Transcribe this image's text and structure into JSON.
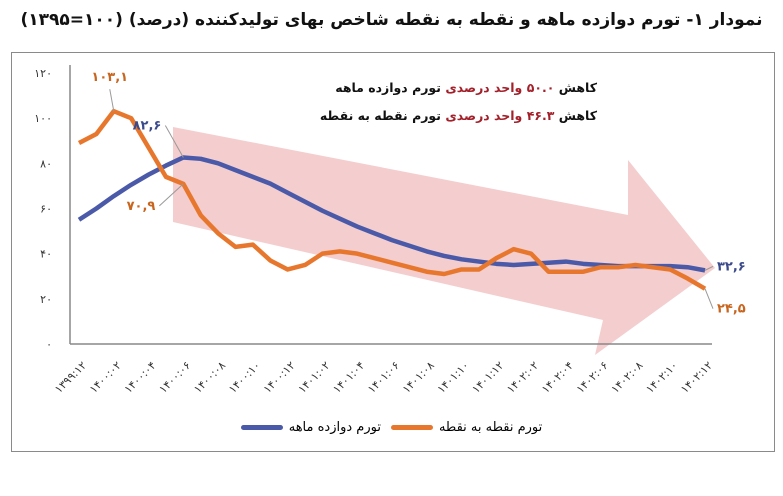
{
  "title": "نمودار ۱- تورم دوازده ماهه و نقطه به نقطه شاخص بهای تولیدکننده (درصد) (۱۰۰=۱۳۹۵)",
  "annotations": [
    {
      "prefix": "کاهش",
      "highlight": "۵۰.۰ واحد درصدی",
      "suffix": "تورم دوازده ماهه"
    },
    {
      "prefix": "کاهش",
      "highlight": "۴۶.۳ واحد درصدی",
      "suffix": "تورم نقطه به نقطه"
    }
  ],
  "colors": {
    "twelve_month": "#4a5aa8",
    "point_to_point": "#e8772e",
    "arrow": "#f2c4c6",
    "highlight": "#a3202a"
  },
  "chart_data": {
    "type": "line",
    "title": "نمودار ۱- تورم دوازده ماهه و نقطه به نقطه شاخص بهای تولیدکننده (درصد) (۱۰۰=۱۳۹۵)",
    "ylim": [
      0,
      120
    ],
    "yticks": [
      "۰",
      "۲۰",
      "۴۰",
      "۶۰",
      "۸۰",
      "۱۰۰",
      "۱۲۰"
    ],
    "ytick_values": [
      0,
      20,
      40,
      60,
      80,
      100,
      120
    ],
    "xtick_labels": [
      "۱۳۹۹:۱۲",
      "۱۴۰۰:۰۲",
      "۱۴۰۰:۰۴",
      "۱۴۰۰:۰۶",
      "۱۴۰۰:۰۸",
      "۱۴۰۰:۱۰",
      "۱۴۰۰:۱۲",
      "۱۴۰۱:۰۲",
      "۱۴۰۱:۰۴",
      "۱۴۰۱:۰۶",
      "۱۴۰۱:۰۸",
      "۱۴۰۱:۱۰",
      "۱۴۰۱:۱۲",
      "۱۴۰۲:۰۲",
      "۱۴۰۲:۰۴",
      "۱۴۰۲:۰۶",
      "۱۴۰۲:۰۸",
      "۱۴۰۲:۱۰",
      "۱۴۰۲:۱۲"
    ],
    "grid": false,
    "legend": "bottom",
    "series": [
      {
        "name": "تورم دوازده ماهه",
        "color": "#4a5aa8",
        "values": [
          55,
          60,
          65.5,
          70.5,
          75,
          79,
          82.6,
          82,
          80,
          77,
          74,
          71,
          67,
          63,
          59,
          55.5,
          52,
          49,
          46,
          43.5,
          41,
          39,
          37.5,
          36.5,
          35.5,
          35,
          35.5,
          36,
          36.5,
          35.5,
          35,
          34.5,
          34.5,
          34.5,
          34.5,
          34,
          32.6
        ],
        "labels": [
          {
            "index": 6,
            "text": "۸۲,۶"
          },
          {
            "index": 36,
            "text": "۳۲,۶"
          }
        ]
      },
      {
        "name": "تورم نقطه به نقطه",
        "color": "#e8772e",
        "values": [
          89,
          93,
          103.1,
          100,
          87,
          74,
          70.9,
          57,
          49,
          43,
          44,
          37,
          33,
          35,
          40,
          41,
          40,
          38,
          36,
          34,
          32,
          31,
          33,
          33,
          38,
          42,
          40,
          32,
          32,
          32,
          34,
          34,
          35,
          34,
          33,
          29,
          24.5
        ],
        "labels": [
          {
            "index": 2,
            "text": "۱۰۳,۱"
          },
          {
            "index": 6,
            "text": "۷۰,۹"
          },
          {
            "index": 36,
            "text": "۲۴,۵"
          }
        ]
      }
    ]
  }
}
